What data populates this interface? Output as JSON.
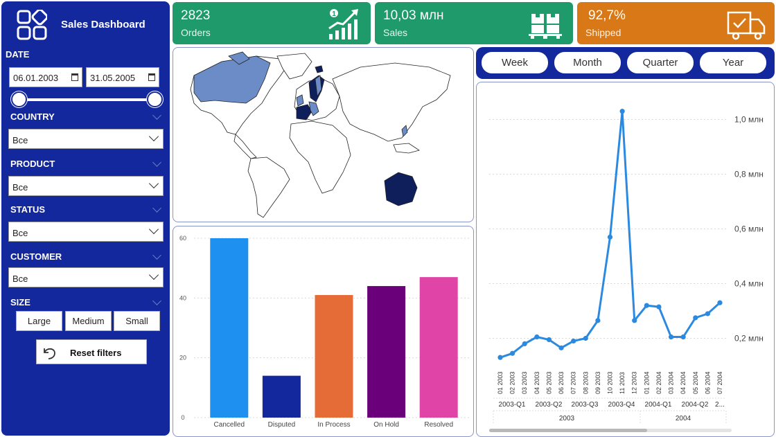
{
  "sidebar": {
    "title": "Sales Dashboard",
    "date_label": "DATE",
    "date_from": "06.01.2003",
    "date_to": "31.05.2005",
    "filters": [
      {
        "label": "COUNTRY",
        "value": "Все"
      },
      {
        "label": "PRODUCT",
        "value": "Все"
      },
      {
        "label": "STATUS",
        "value": "Все"
      },
      {
        "label": "CUSTOMER",
        "value": "Все"
      }
    ],
    "size_label": "SIZE",
    "size_options": [
      "Large",
      "Medium",
      "Small"
    ],
    "reset_label": "Reset filters"
  },
  "kpis": [
    {
      "value": "2823",
      "label": "Orders",
      "color": "#1f9a6a",
      "icon": "growth-chart-icon"
    },
    {
      "value": "10,03 млн",
      "label": "Sales",
      "color": "#1f9a6a",
      "icon": "pallet-boxes-icon"
    },
    {
      "value": "92,7%",
      "label": "Shipped",
      "color": "#d97816",
      "icon": "delivery-truck-icon"
    }
  ],
  "periods": [
    "Week",
    "Month",
    "Quarter",
    "Year"
  ],
  "colors": {
    "sidebar": "#13289c",
    "green": "#1f9a6a",
    "orange": "#d97816",
    "line": "#2b8ae0",
    "map_light": "#6b8cc7",
    "map_dark": "#0f1f5c"
  },
  "chart_data": [
    {
      "type": "bar",
      "categories": [
        "Cancelled",
        "Disputed",
        "In Process",
        "On Hold",
        "Resolved"
      ],
      "values": [
        60,
        14,
        41,
        44,
        47
      ],
      "colors": [
        "#1e90f0",
        "#13289c",
        "#e66c37",
        "#6b007b",
        "#e044a7"
      ],
      "yticks": [
        "0",
        "20",
        "40",
        "60"
      ],
      "ylim": [
        0,
        60
      ],
      "grid": true
    },
    {
      "type": "line",
      "x": [
        "01 2003",
        "02 2003",
        "03 2003",
        "04 2003",
        "05 2003",
        "06 2003",
        "07 2003",
        "08 2003",
        "09 2003",
        "10 2003",
        "11 2003",
        "12 2003",
        "01 2004",
        "02 2004",
        "03 2004",
        "04 2004",
        "05 2004",
        "06 2004",
        "07 2004"
      ],
      "values": [
        0.13,
        0.145,
        0.18,
        0.205,
        0.195,
        0.165,
        0.19,
        0.2,
        0.265,
        0.57,
        1.03,
        0.265,
        0.32,
        0.315,
        0.205,
        0.205,
        0.275,
        0.29,
        0.33
      ],
      "yticks": [
        "0,2 млн",
        "0,4 млн",
        "0,6 млн",
        "0,8 млн",
        "1,0 млн"
      ],
      "quarters": [
        "2003-Q1",
        "2003-Q2",
        "2003-Q3",
        "2003-Q4",
        "2004-Q1",
        "2004-Q2",
        "2..."
      ],
      "years": [
        "2003",
        "2004"
      ],
      "ylim": [
        0.1,
        1.1
      ],
      "grid": true
    }
  ]
}
